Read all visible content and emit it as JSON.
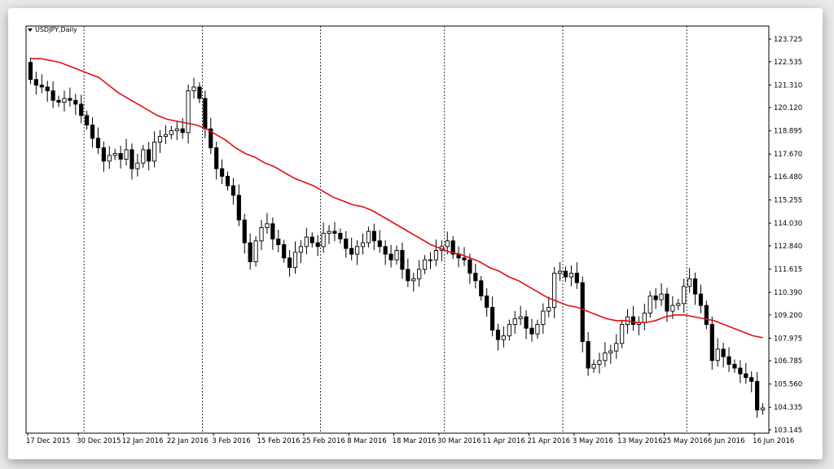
{
  "chart_data": {
    "type": "candlestick",
    "title": "",
    "symbol": "USDJPY,Daily",
    "ma_color": "#e01010",
    "y_axis_labels": [
      "123.725",
      "122.535",
      "121.310",
      "120.120",
      "118.895",
      "117.670",
      "116.480",
      "115.255",
      "114.030",
      "112.840",
      "111.615",
      "110.390",
      "109.200",
      "107.975",
      "106.785",
      "105.560",
      "104.335",
      "103.145"
    ],
    "ylim": [
      103.145,
      123.725
    ],
    "x_axis_labels": [
      "17 Dec 2015",
      "30 Dec 2015",
      "12 Jan 2016",
      "22 Jan 2016",
      "3 Feb 2016",
      "15 Feb 2016",
      "25 Feb 2016",
      "8 Mar 2016",
      "18 Mar 2016",
      "30 Mar 2016",
      "11 Apr 2016",
      "21 Apr 2016",
      "3 May 2016",
      "13 May 2016",
      "25 May 2016",
      "6 Jun 2016",
      "16 Jun 2016"
    ],
    "x_label_index": [
      0,
      9,
      17,
      25,
      33,
      41,
      49,
      57,
      65,
      73,
      81,
      89,
      97,
      105,
      113,
      121,
      129
    ],
    "period_separators": [
      10,
      31,
      52,
      74,
      95,
      117
    ],
    "closes": [
      121.6,
      121.3,
      121.2,
      121.0,
      120.5,
      120.4,
      120.6,
      120.5,
      120.3,
      119.7,
      119.2,
      118.5,
      118.0,
      117.3,
      117.6,
      117.7,
      117.4,
      117.9,
      116.9,
      117.2,
      117.9,
      117.3,
      118.3,
      118.6,
      118.7,
      118.9,
      119.0,
      118.8,
      121.0,
      121.2,
      120.6,
      119.0,
      118.0,
      116.9,
      116.5,
      116.0,
      115.5,
      114.2,
      113.0,
      112.0,
      113.1,
      113.8,
      114.0,
      113.2,
      112.9,
      112.2,
      111.7,
      112.5,
      112.8,
      113.3,
      113.0,
      112.8,
      113.5,
      113.6,
      113.5,
      113.2,
      112.7,
      112.4,
      112.8,
      113.0,
      113.6,
      113.1,
      112.8,
      112.4,
      112.1,
      112.6,
      111.6,
      111.0,
      111.1,
      111.6,
      112.1,
      112.1,
      112.6,
      112.8,
      113.1,
      112.4,
      112.2,
      112.1,
      111.4,
      111.0,
      110.2,
      109.6,
      108.4,
      107.9,
      108.1,
      108.7,
      109.0,
      109.1,
      108.5,
      108.2,
      108.7,
      109.4,
      109.6,
      111.4,
      111.5,
      111.2,
      111.4,
      110.9,
      107.8,
      106.4,
      106.6,
      106.8,
      107.2,
      107.3,
      107.7,
      108.7,
      109.1,
      108.7,
      108.8,
      109.3,
      110.2,
      110.0,
      110.3,
      109.4,
      109.7,
      109.8,
      110.7,
      111.1,
      110.3,
      109.7,
      108.7,
      106.8,
      107.4,
      107.0,
      106.6,
      106.4,
      106.1,
      105.9,
      105.7,
      104.2,
      104.3
    ],
    "ma_values": [
      122.7,
      122.7,
      122.6,
      122.5,
      122.3,
      122.1,
      121.9,
      121.7,
      121.3,
      120.9,
      120.6,
      120.3,
      120.0,
      119.7,
      119.5,
      119.4,
      119.3,
      119.2,
      119.0,
      118.7,
      118.4,
      118.0,
      117.7,
      117.5,
      117.2,
      117.0,
      116.7,
      116.4,
      116.2,
      116.0,
      115.7,
      115.4,
      115.2,
      115.0,
      114.9,
      114.7,
      114.4,
      114.1,
      113.8,
      113.5,
      113.2,
      112.9,
      112.7,
      112.5,
      112.4,
      112.2,
      112.0,
      111.7,
      111.5,
      111.2,
      111.0,
      110.7,
      110.4,
      110.1,
      109.9,
      109.7,
      109.6,
      109.4,
      109.2,
      109.0,
      108.9,
      108.9,
      108.8,
      108.8,
      108.9,
      109.1,
      109.2,
      109.2,
      109.1,
      109.0,
      108.9,
      108.7,
      108.5,
      108.3,
      108.1,
      108.0
    ]
  }
}
